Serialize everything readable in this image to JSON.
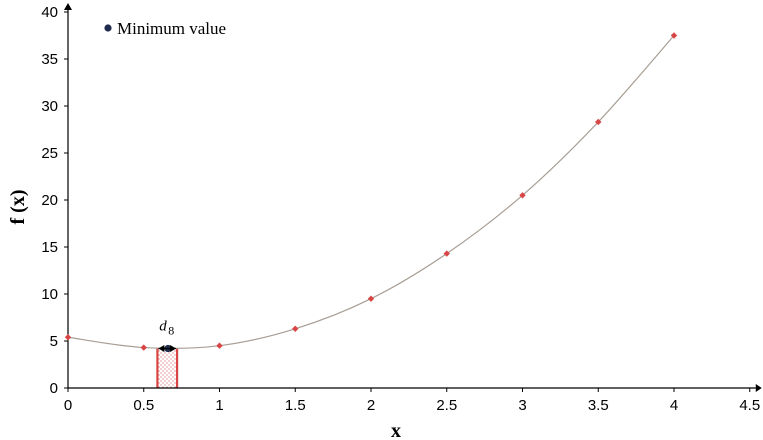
{
  "chart_data": {
    "type": "scatter",
    "title": "",
    "xlabel": "x",
    "ylabel": "f (x)",
    "xlim": [
      0,
      4.5
    ],
    "ylim": [
      0,
      40
    ],
    "xticks": [
      "0",
      "0.5",
      "1",
      "1.5",
      "2",
      "2.5",
      "3",
      "3.5",
      "4",
      "4.5"
    ],
    "yticks": [
      "0",
      "5",
      "10",
      "15",
      "20",
      "25",
      "30",
      "35",
      "40"
    ],
    "grid": false,
    "series": [
      {
        "name": "",
        "marker": "diamond",
        "color": "#d94545",
        "points": [
          {
            "x": 0,
            "y": 5.4
          },
          {
            "x": 0.5,
            "y": 4.3
          },
          {
            "x": 1,
            "y": 4.5
          },
          {
            "x": 1.5,
            "y": 6.3
          },
          {
            "x": 2,
            "y": 9.5
          },
          {
            "x": 2.5,
            "y": 14.3
          },
          {
            "x": 3,
            "y": 20.5
          },
          {
            "x": 3.5,
            "y": 28.3
          },
          {
            "x": 4,
            "y": 37.5
          }
        ]
      },
      {
        "name": "Minimum value",
        "marker": "circle",
        "color": "#1f2b4d",
        "points": [
          {
            "x": 0.66,
            "y": 4.2
          }
        ]
      }
    ],
    "fit_curve_color": "#a89e94",
    "interval": {
      "label": "d",
      "subscript": "8",
      "x_start": 0.59,
      "x_end": 0.72,
      "color": "#d94545"
    },
    "legend": {
      "position": "top-left",
      "entries": [
        "Minimum value"
      ]
    }
  }
}
